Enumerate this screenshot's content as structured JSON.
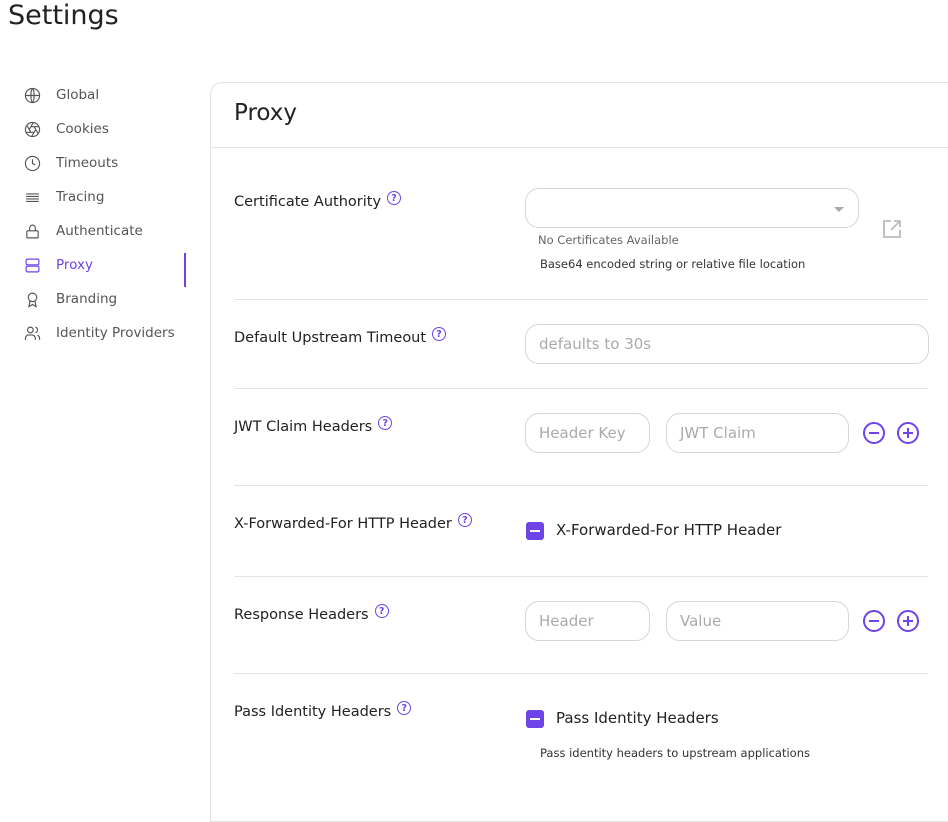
{
  "page": {
    "title": "Settings"
  },
  "sidebar": {
    "items": [
      {
        "label": "Global",
        "icon": "globe-icon"
      },
      {
        "label": "Cookies",
        "icon": "aperture-icon"
      },
      {
        "label": "Timeouts",
        "icon": "clock-icon"
      },
      {
        "label": "Tracing",
        "icon": "lines-icon"
      },
      {
        "label": "Authenticate",
        "icon": "lock-icon"
      },
      {
        "label": "Proxy",
        "icon": "server-icon",
        "active": true
      },
      {
        "label": "Branding",
        "icon": "award-icon"
      },
      {
        "label": "Identity Providers",
        "icon": "users-icon"
      }
    ]
  },
  "accent": "#6e43e8",
  "card": {
    "title": "Proxy",
    "ca": {
      "label": "Certificate Authority",
      "value": "",
      "status": "No Certificates Available",
      "help": "Base64 encoded string or relative file location"
    },
    "timeout": {
      "label": "Default Upstream Timeout",
      "placeholder": "defaults to 30s"
    },
    "jwt": {
      "label": "JWT Claim Headers",
      "key_placeholder": "Header Key",
      "claim_placeholder": "JWT Claim"
    },
    "xff": {
      "label": "X-Forwarded-For HTTP Header",
      "checkbox": "X-Forwarded-For HTTP Header",
      "state": "indeterminate"
    },
    "resp": {
      "label": "Response Headers",
      "key_placeholder": "Header",
      "value_placeholder": "Value"
    },
    "pass": {
      "label": "Pass Identity Headers",
      "checkbox": "Pass Identity Headers",
      "state": "indeterminate",
      "help": "Pass identity headers to upstream applications"
    }
  }
}
